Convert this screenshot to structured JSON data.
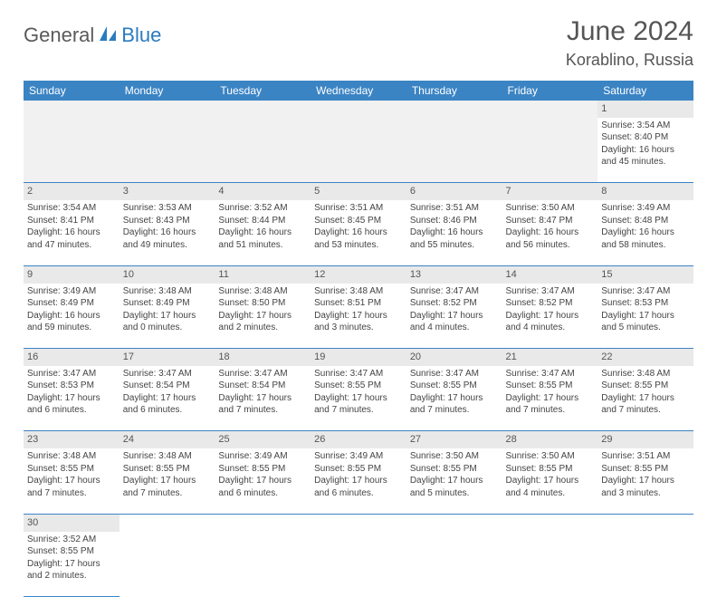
{
  "brand": {
    "part1": "General",
    "part2": "Blue"
  },
  "title": "June 2024",
  "location": "Korablino, Russia",
  "colors": {
    "header_bg": "#3b84c4",
    "header_text": "#ffffff",
    "daynum_bg": "#e9e9e9",
    "border": "#3b84c4",
    "brand_gray": "#5a5a5a",
    "brand_blue": "#2b7bbf"
  },
  "weekdays": [
    "Sunday",
    "Monday",
    "Tuesday",
    "Wednesday",
    "Thursday",
    "Friday",
    "Saturday"
  ],
  "weeks": [
    [
      null,
      null,
      null,
      null,
      null,
      null,
      {
        "n": "1",
        "sr": "3:54 AM",
        "ss": "8:40 PM",
        "dl": "16 hours and 45 minutes."
      }
    ],
    [
      {
        "n": "2",
        "sr": "3:54 AM",
        "ss": "8:41 PM",
        "dl": "16 hours and 47 minutes."
      },
      {
        "n": "3",
        "sr": "3:53 AM",
        "ss": "8:43 PM",
        "dl": "16 hours and 49 minutes."
      },
      {
        "n": "4",
        "sr": "3:52 AM",
        "ss": "8:44 PM",
        "dl": "16 hours and 51 minutes."
      },
      {
        "n": "5",
        "sr": "3:51 AM",
        "ss": "8:45 PM",
        "dl": "16 hours and 53 minutes."
      },
      {
        "n": "6",
        "sr": "3:51 AM",
        "ss": "8:46 PM",
        "dl": "16 hours and 55 minutes."
      },
      {
        "n": "7",
        "sr": "3:50 AM",
        "ss": "8:47 PM",
        "dl": "16 hours and 56 minutes."
      },
      {
        "n": "8",
        "sr": "3:49 AM",
        "ss": "8:48 PM",
        "dl": "16 hours and 58 minutes."
      }
    ],
    [
      {
        "n": "9",
        "sr": "3:49 AM",
        "ss": "8:49 PM",
        "dl": "16 hours and 59 minutes."
      },
      {
        "n": "10",
        "sr": "3:48 AM",
        "ss": "8:49 PM",
        "dl": "17 hours and 0 minutes."
      },
      {
        "n": "11",
        "sr": "3:48 AM",
        "ss": "8:50 PM",
        "dl": "17 hours and 2 minutes."
      },
      {
        "n": "12",
        "sr": "3:48 AM",
        "ss": "8:51 PM",
        "dl": "17 hours and 3 minutes."
      },
      {
        "n": "13",
        "sr": "3:47 AM",
        "ss": "8:52 PM",
        "dl": "17 hours and 4 minutes."
      },
      {
        "n": "14",
        "sr": "3:47 AM",
        "ss": "8:52 PM",
        "dl": "17 hours and 4 minutes."
      },
      {
        "n": "15",
        "sr": "3:47 AM",
        "ss": "8:53 PM",
        "dl": "17 hours and 5 minutes."
      }
    ],
    [
      {
        "n": "16",
        "sr": "3:47 AM",
        "ss": "8:53 PM",
        "dl": "17 hours and 6 minutes."
      },
      {
        "n": "17",
        "sr": "3:47 AM",
        "ss": "8:54 PM",
        "dl": "17 hours and 6 minutes."
      },
      {
        "n": "18",
        "sr": "3:47 AM",
        "ss": "8:54 PM",
        "dl": "17 hours and 7 minutes."
      },
      {
        "n": "19",
        "sr": "3:47 AM",
        "ss": "8:55 PM",
        "dl": "17 hours and 7 minutes."
      },
      {
        "n": "20",
        "sr": "3:47 AM",
        "ss": "8:55 PM",
        "dl": "17 hours and 7 minutes."
      },
      {
        "n": "21",
        "sr": "3:47 AM",
        "ss": "8:55 PM",
        "dl": "17 hours and 7 minutes."
      },
      {
        "n": "22",
        "sr": "3:48 AM",
        "ss": "8:55 PM",
        "dl": "17 hours and 7 minutes."
      }
    ],
    [
      {
        "n": "23",
        "sr": "3:48 AM",
        "ss": "8:55 PM",
        "dl": "17 hours and 7 minutes."
      },
      {
        "n": "24",
        "sr": "3:48 AM",
        "ss": "8:55 PM",
        "dl": "17 hours and 7 minutes."
      },
      {
        "n": "25",
        "sr": "3:49 AM",
        "ss": "8:55 PM",
        "dl": "17 hours and 6 minutes."
      },
      {
        "n": "26",
        "sr": "3:49 AM",
        "ss": "8:55 PM",
        "dl": "17 hours and 6 minutes."
      },
      {
        "n": "27",
        "sr": "3:50 AM",
        "ss": "8:55 PM",
        "dl": "17 hours and 5 minutes."
      },
      {
        "n": "28",
        "sr": "3:50 AM",
        "ss": "8:55 PM",
        "dl": "17 hours and 4 minutes."
      },
      {
        "n": "29",
        "sr": "3:51 AM",
        "ss": "8:55 PM",
        "dl": "17 hours and 3 minutes."
      }
    ],
    [
      {
        "n": "30",
        "sr": "3:52 AM",
        "ss": "8:55 PM",
        "dl": "17 hours and 2 minutes."
      },
      null,
      null,
      null,
      null,
      null,
      null
    ]
  ],
  "labels": {
    "sunrise": "Sunrise:",
    "sunset": "Sunset:",
    "daylight": "Daylight:"
  }
}
